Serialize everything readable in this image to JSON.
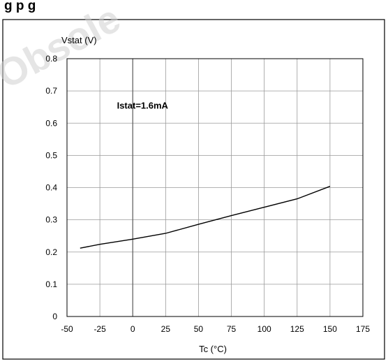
{
  "header": {
    "text": "g                             p   g",
    "watermark": "Obsole"
  },
  "chart_data": {
    "type": "line",
    "title": "",
    "xlabel": "Tc (°C)",
    "ylabel": "Vstat (V)",
    "xlim": [
      -50,
      175
    ],
    "ylim": [
      0,
      0.8
    ],
    "x_ticks": [
      "-50",
      "-25",
      "0",
      "25",
      "50",
      "75",
      "100",
      "125",
      "150",
      "175"
    ],
    "y_ticks": [
      "0",
      "0.1",
      "0.2",
      "0.3",
      "0.4",
      "0.5",
      "0.6",
      "0.7",
      "0.8"
    ],
    "grid": true,
    "annotation": {
      "text": "Istat=1.6mA",
      "x": -12,
      "y": 0.645
    },
    "series": [
      {
        "x": [
          -40,
          -25,
          0,
          25,
          50,
          75,
          100,
          125,
          150
        ],
        "y": [
          0.212,
          0.224,
          0.24,
          0.258,
          0.286,
          0.313,
          0.339,
          0.365,
          0.404
        ],
        "color": "#000000"
      }
    ]
  }
}
